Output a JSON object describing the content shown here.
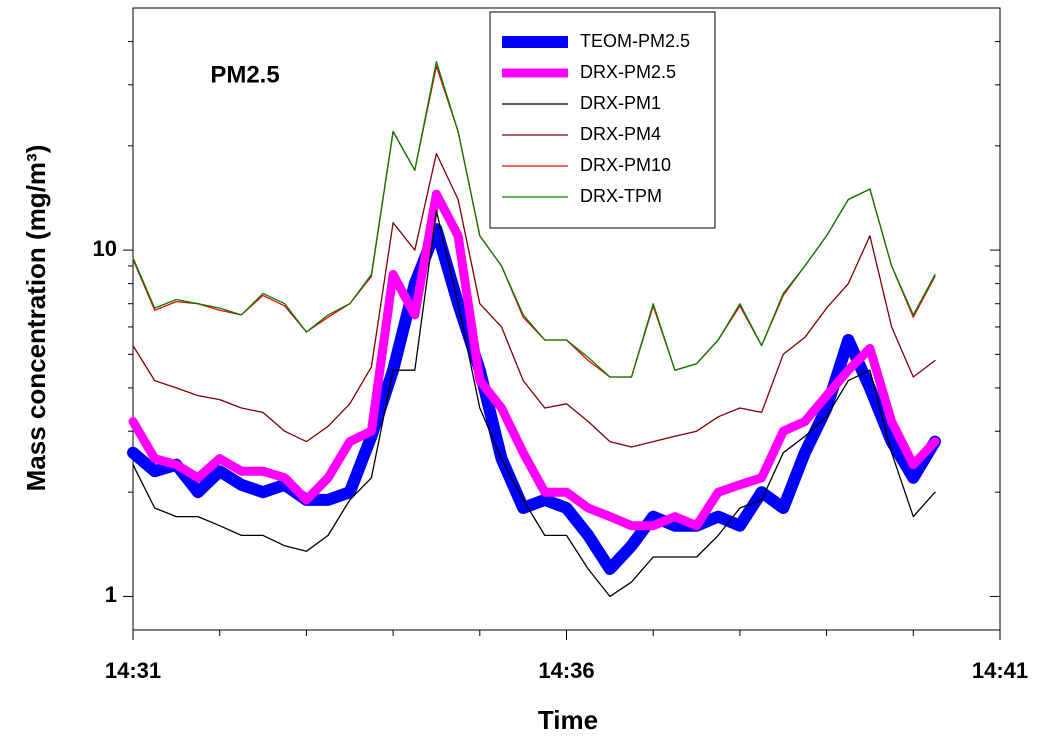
{
  "chart_data": {
    "type": "line",
    "annotation": "PM2.5",
    "xlabel": "Time",
    "ylabel": "Mass concentration (mg/m³)",
    "log_y": true,
    "legend": "upper center",
    "xlim": [
      "14:31",
      "14:41"
    ],
    "xticks": [
      "14:31",
      "14:36",
      "14:41"
    ],
    "xminor_ticks": [
      "14:32",
      "14:33",
      "14:34",
      "14:35",
      "14:37",
      "14:38",
      "14:39",
      "14:40"
    ],
    "ylim": [
      0.8,
      50
    ],
    "yticks": [
      1,
      10
    ],
    "yminor_ticks": [
      2,
      3,
      4,
      5,
      6,
      7,
      8,
      9,
      20,
      30,
      40
    ],
    "x": [
      "14:31:00",
      "14:31:15",
      "14:31:30",
      "14:31:45",
      "14:32:00",
      "14:32:15",
      "14:32:30",
      "14:32:45",
      "14:33:00",
      "14:33:15",
      "14:33:30",
      "14:33:45",
      "14:34:00",
      "14:34:15",
      "14:34:30",
      "14:34:45",
      "14:35:00",
      "14:35:15",
      "14:35:30",
      "14:35:45",
      "14:36:00",
      "14:36:15",
      "14:36:30",
      "14:36:45",
      "14:37:00",
      "14:37:15",
      "14:37:30",
      "14:37:45",
      "14:38:00",
      "14:38:15",
      "14:38:30",
      "14:38:45",
      "14:39:00",
      "14:39:15",
      "14:39:30",
      "14:39:45",
      "14:40:00",
      "14:40:15"
    ],
    "series": [
      {
        "name": "TEOM-PM2.5",
        "color": "#0000ff",
        "width": 12,
        "values": [
          2.6,
          2.3,
          2.4,
          2.0,
          2.3,
          2.1,
          2.0,
          2.1,
          1.9,
          1.9,
          2.0,
          2.9,
          4.5,
          8,
          11.5,
          7,
          4.5,
          2.5,
          1.8,
          1.9,
          1.8,
          1.5,
          1.2,
          1.4,
          1.7,
          1.6,
          1.6,
          1.7,
          1.6,
          2.0,
          1.8,
          2.6,
          3.5,
          5.5,
          4.0,
          2.8,
          2.2,
          2.8
        ]
      },
      {
        "name": "DRX-PM2.5",
        "color": "#ff00ff",
        "width": 9,
        "values": [
          3.2,
          2.5,
          2.4,
          2.2,
          2.5,
          2.3,
          2.3,
          2.2,
          1.9,
          2.2,
          2.8,
          3.0,
          8.5,
          6.5,
          14.5,
          11,
          4.2,
          3.5,
          2.6,
          2.0,
          2.0,
          1.8,
          1.7,
          1.6,
          1.6,
          1.7,
          1.6,
          2.0,
          2.1,
          2.2,
          3.0,
          3.2,
          3.8,
          4.5,
          5.2,
          3.2,
          2.4,
          2.8
        ]
      },
      {
        "name": "DRX-PM1",
        "color": "#000000",
        "width": 1.3,
        "values": [
          2.4,
          1.8,
          1.7,
          1.7,
          1.6,
          1.5,
          1.5,
          1.4,
          1.35,
          1.5,
          1.9,
          2.2,
          4.5,
          4.5,
          13,
          7,
          3.5,
          2.5,
          1.9,
          1.5,
          1.5,
          1.2,
          1.0,
          1.1,
          1.3,
          1.3,
          1.3,
          1.5,
          1.8,
          1.9,
          2.6,
          2.9,
          3.3,
          4.2,
          4.5,
          2.6,
          1.7,
          2.0
        ]
      },
      {
        "name": "DRX-PM4",
        "color": "#800000",
        "width": 1.3,
        "values": [
          5.3,
          4.2,
          4.0,
          3.8,
          3.7,
          3.5,
          3.4,
          3.0,
          2.8,
          3.1,
          3.6,
          4.6,
          12,
          10,
          19,
          14,
          7,
          6,
          4.2,
          3.5,
          3.6,
          3.2,
          2.8,
          2.7,
          2.8,
          2.9,
          3.0,
          3.3,
          3.5,
          3.4,
          5.0,
          5.6,
          6.8,
          8.0,
          11,
          6.0,
          4.3,
          4.8
        ]
      },
      {
        "name": "DRX-PM10",
        "color": "#ff0000",
        "width": 1.3,
        "values": [
          9.4,
          6.7,
          7.1,
          7.0,
          6.7,
          6.5,
          7.4,
          6.9,
          5.8,
          6.4,
          7,
          8.4,
          22,
          17,
          34,
          22,
          11,
          9,
          6.4,
          5.5,
          5.5,
          4.8,
          4.3,
          4.3,
          6.9,
          4.5,
          4.7,
          5.5,
          6.9,
          5.3,
          7.4,
          9,
          11,
          14,
          15,
          9,
          6.4,
          8.4
        ]
      },
      {
        "name": "DRX-TPM",
        "color": "#008000",
        "width": 1.3,
        "values": [
          9.5,
          6.8,
          7.2,
          7.0,
          6.8,
          6.5,
          7.5,
          7.0,
          5.8,
          6.5,
          7,
          8.5,
          22,
          17,
          35,
          22,
          11,
          9,
          6.5,
          5.5,
          5.5,
          4.9,
          4.3,
          4.3,
          7.0,
          4.5,
          4.7,
          5.5,
          7.0,
          5.3,
          7.5,
          9,
          11,
          14,
          15,
          9,
          6.5,
          8.5
        ]
      }
    ]
  }
}
